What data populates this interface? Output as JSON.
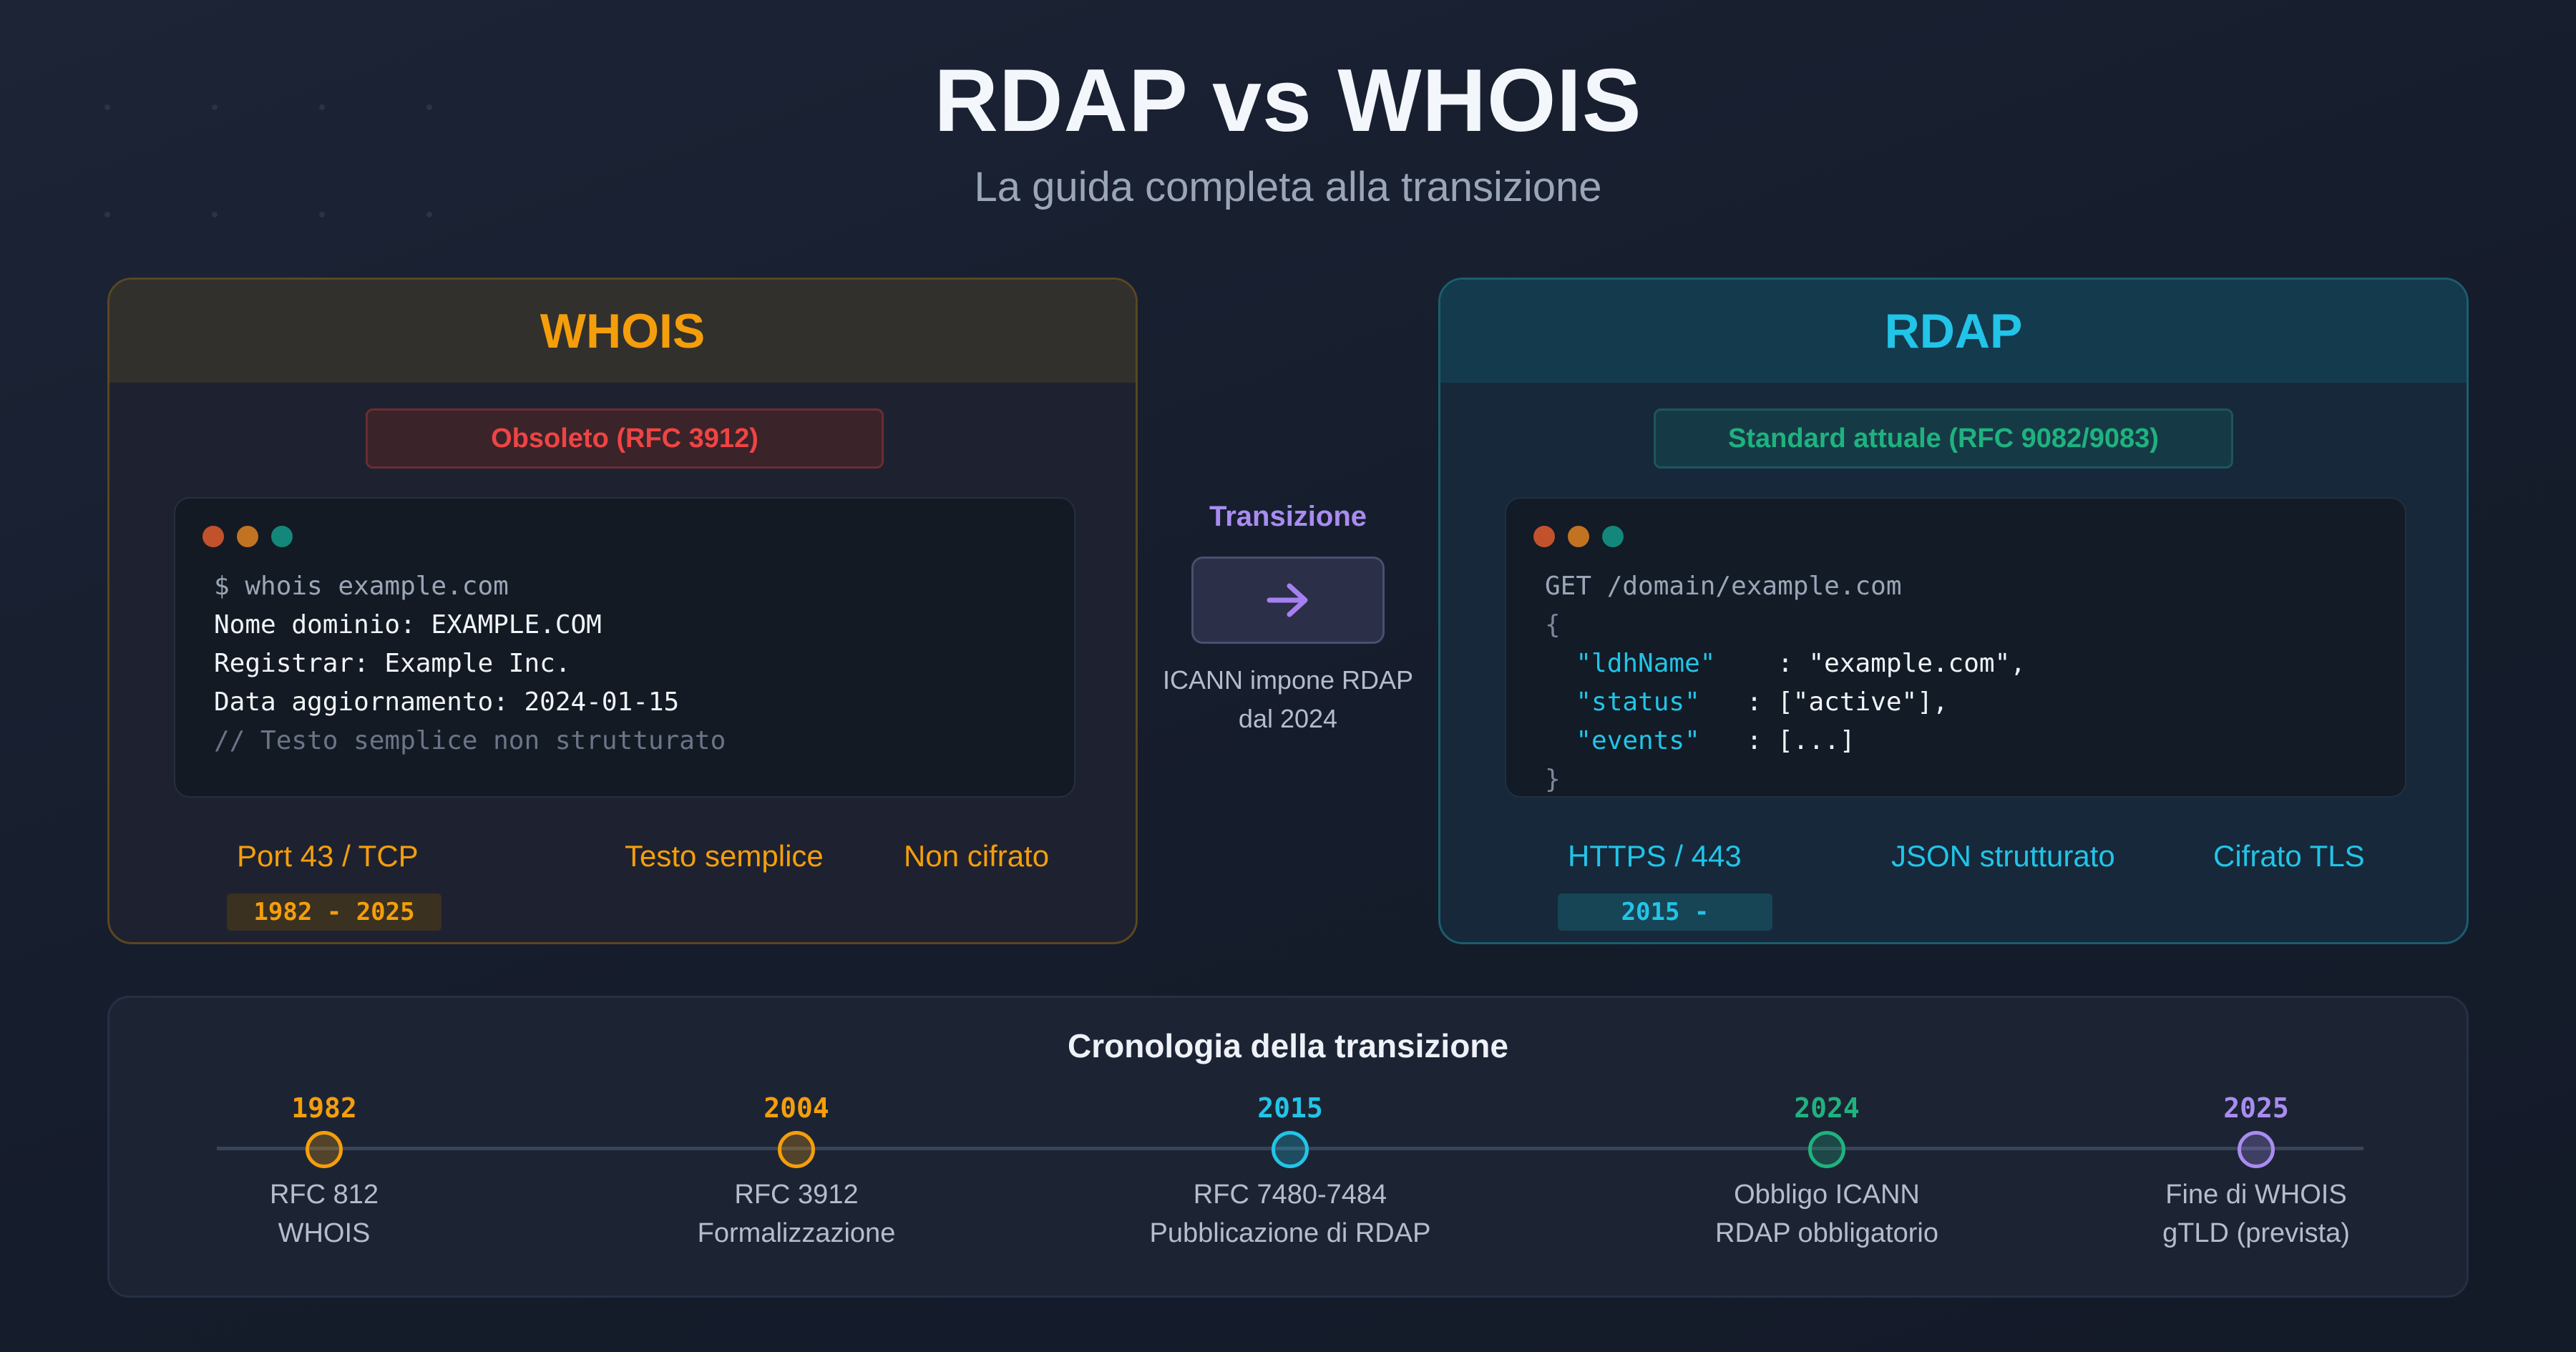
{
  "header": {
    "title": "RDAP vs WHOIS",
    "subtitle": "La guida completa alla transizione"
  },
  "colors": {
    "whois_accent": "#f59e0b",
    "rdap_accent": "#22c4e8",
    "obsolete_red": "#ef4444",
    "standard_green": "#1fb27f",
    "transition_purple": "#a98cf0"
  },
  "whois": {
    "title": "WHOIS",
    "badge": "Obsoleto (RFC 3912)",
    "terminal": {
      "lines": [
        "$ whois example.com",
        "Nome dominio: EXAMPLE.COM",
        "Registrar: Example Inc.",
        "Data aggiornamento: 2024-01-15",
        "// Testo semplice non strutturato"
      ]
    },
    "features": [
      "Port 43 / TCP",
      "Testo semplice",
      "Non cifrato"
    ],
    "years": "1982 - 2025"
  },
  "rdap": {
    "title": "RDAP",
    "badge": "Standard attuale (RFC 9082/9083)",
    "terminal": {
      "request": "GET /domain/example.com",
      "open_brace": "{",
      "fields": [
        {
          "key": "\"ldhName\"",
          "sep": "    : ",
          "value": "\"example.com\","
        },
        {
          "key": "\"status\"",
          "sep": "   : ",
          "value": "[\"active\"],"
        },
        {
          "key": "\"events\"",
          "sep": "   : ",
          "value": "[...]"
        }
      ],
      "close_brace": "}"
    },
    "features": [
      "HTTPS / 443",
      "JSON strutturato",
      "Cifrato TLS"
    ],
    "years": "2015 -"
  },
  "transition": {
    "label": "Transizione",
    "icon": "arrow-right-icon",
    "note_line1": "ICANN impone RDAP",
    "note_line2": "dal 2024"
  },
  "timeline": {
    "title": "Cronologia della transizione",
    "milestones": [
      {
        "year": "1982",
        "line1": "RFC 812",
        "line2": "WHOIS",
        "color": "#f59e0b"
      },
      {
        "year": "2004",
        "line1": "RFC 3912",
        "line2": "Formalizzazione",
        "color": "#f59e0b"
      },
      {
        "year": "2015",
        "line1": "RFC 7480-7484",
        "line2": "Pubblicazione di RDAP",
        "color": "#22c4e8"
      },
      {
        "year": "2024",
        "line1": "Obbligo ICANN",
        "line2": "RDAP obbligatorio",
        "color": "#1fb27f"
      },
      {
        "year": "2025",
        "line1": "Fine di WHOIS",
        "line2": "gTLD (prevista)",
        "color": "#a98cf0"
      }
    ]
  }
}
